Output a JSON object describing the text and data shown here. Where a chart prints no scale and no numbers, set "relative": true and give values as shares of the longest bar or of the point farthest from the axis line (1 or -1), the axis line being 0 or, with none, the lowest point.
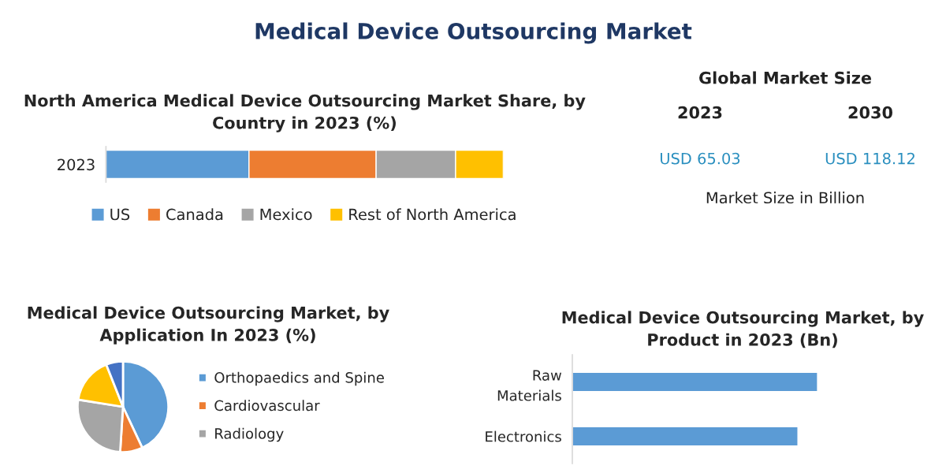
{
  "chart_data": [
    {
      "type": "other",
      "title": "Medical Device Outsourcing Market"
    },
    {
      "type": "bar",
      "title": "North America Medical Device Outsourcing Market Share, by Country in 2023 (%)",
      "orientation": "horizontal",
      "stacked": true,
      "relative": true,
      "categories": [
        "2023"
      ],
      "legend": "bottom",
      "series": [
        {
          "name": "US",
          "color": "#5b9bd5",
          "values": [
            0.36
          ]
        },
        {
          "name": "Canada",
          "color": "#ed7d31",
          "values": [
            0.32
          ]
        },
        {
          "name": "Mexico",
          "color": "#a5a5a5",
          "values": [
            0.2
          ]
        },
        {
          "name": "Rest of North America",
          "color": "#ffc000",
          "values": [
            0.12
          ]
        }
      ]
    },
    {
      "type": "other",
      "title": "Global Market Size",
      "annotations": [
        "2023",
        "2030",
        "USD 65.03",
        "USD 118.12",
        "Market Size in Billion"
      ]
    },
    {
      "type": "pie",
      "title": "Medical Device Outsourcing Market, by\nApplication In 2023 (%)",
      "categories": [
        "Orthopaedics and Spine",
        "Cardiovascular",
        "Radiology",
        null,
        null
      ],
      "values": [
        43,
        8,
        26.5,
        16.5,
        6
      ],
      "colors": [
        "#5b9bd5",
        "#ed7d31",
        "#a5a5a5",
        "#ffc000",
        "#4472c4"
      ],
      "legend": "right"
    },
    {
      "type": "bar",
      "title": "Medical Device Outsourcing Market, by Product in 2023 (Bn)",
      "orientation": "horizontal",
      "relative": true,
      "categories": [
        "Raw\nMaterials",
        "Electronics"
      ],
      "values": [
        1,
        0.92
      ],
      "color": "#5b9bd5"
    }
  ]
}
